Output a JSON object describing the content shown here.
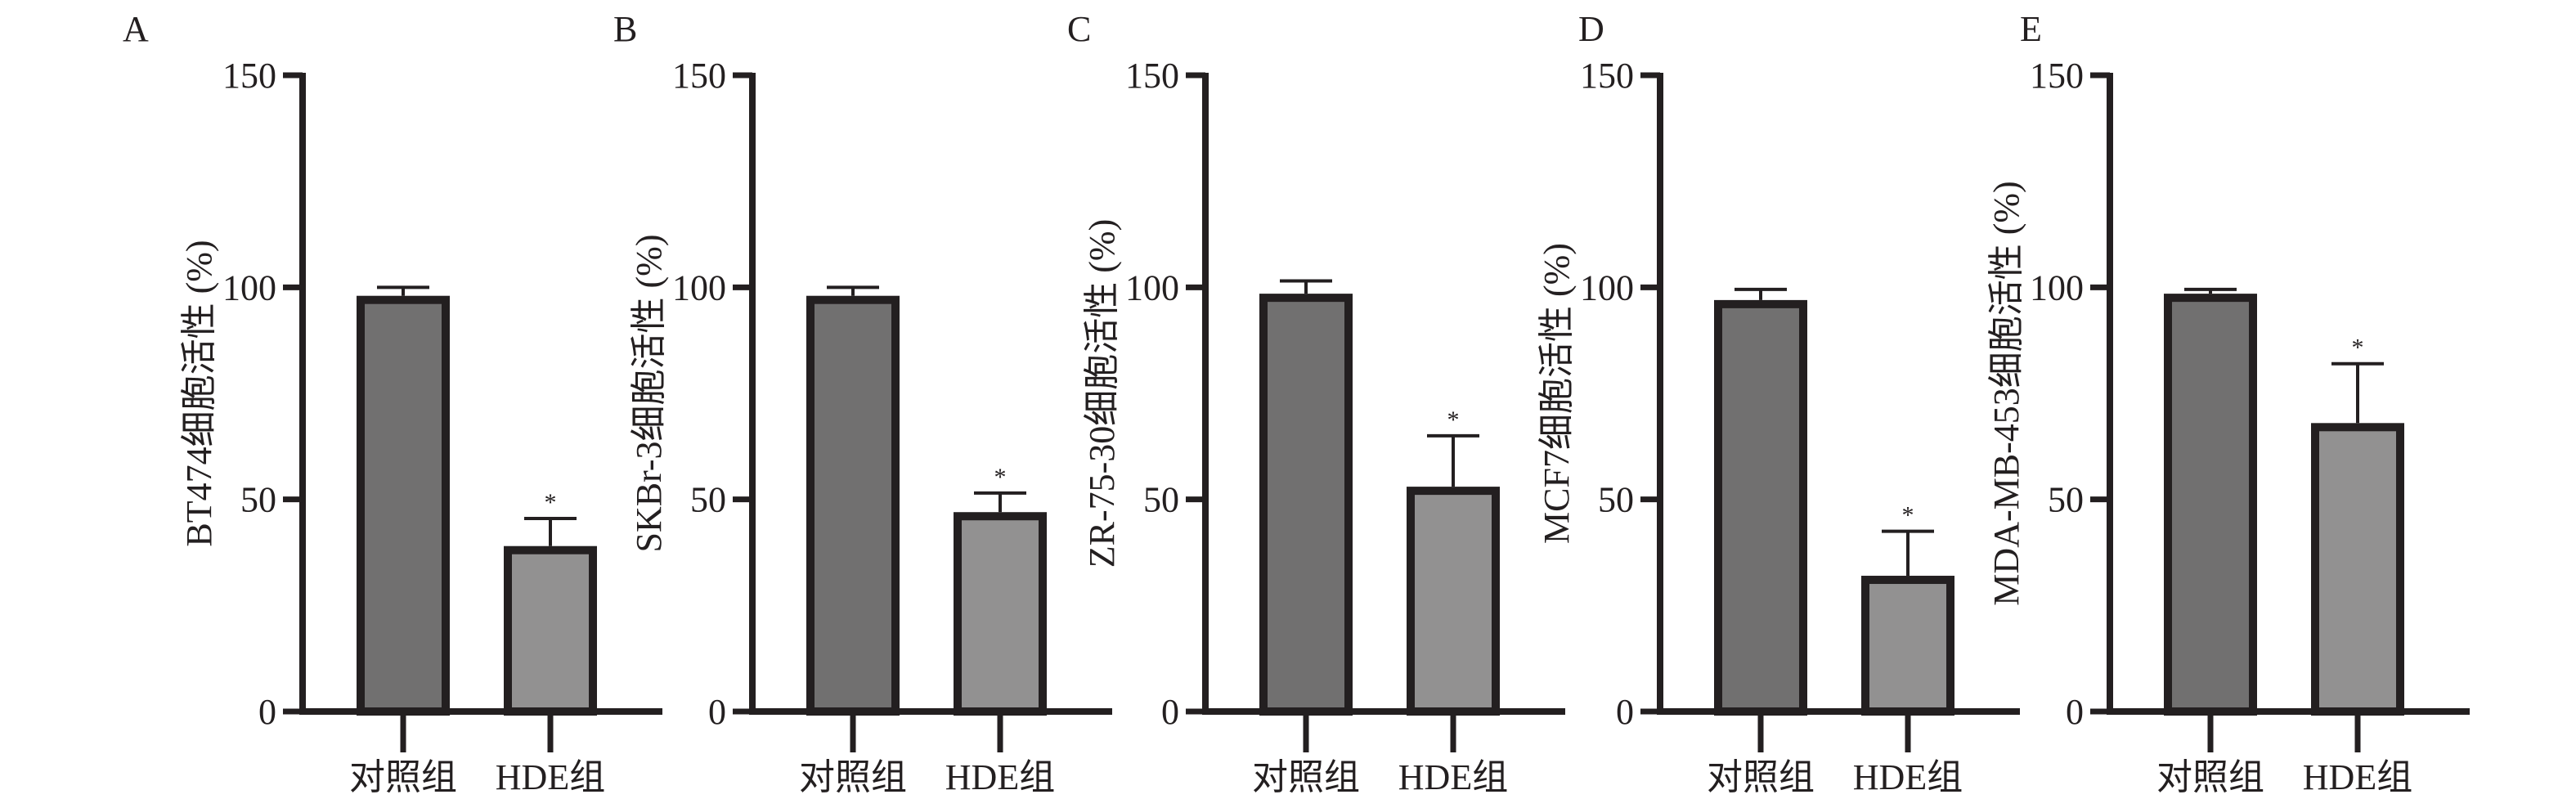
{
  "chart_data": [
    {
      "panel": "A",
      "type": "bar",
      "ylabel": "BT474细胞活性 (%)",
      "categories": [
        "对照组",
        "HDE组"
      ],
      "values": [
        98,
        39
      ],
      "error_upper": [
        100,
        45.5
      ],
      "annotations": [
        "",
        "*"
      ],
      "ylim": [
        0,
        150
      ],
      "yticks": [
        0,
        50,
        100,
        150
      ]
    },
    {
      "panel": "B",
      "type": "bar",
      "ylabel": "SKBr-3细胞活性 (%)",
      "categories": [
        "对照组",
        "HDE组"
      ],
      "values": [
        98,
        47
      ],
      "error_upper": [
        100,
        51.5
      ],
      "annotations": [
        "",
        "*"
      ],
      "ylim": [
        0,
        150
      ],
      "yticks": [
        0,
        50,
        100,
        150
      ]
    },
    {
      "panel": "C",
      "type": "bar",
      "ylabel": "ZR-75-30细胞活性 (%)",
      "categories": [
        "对照组",
        "HDE组"
      ],
      "values": [
        98.5,
        53
      ],
      "error_upper": [
        101.5,
        65
      ],
      "annotations": [
        "",
        "*"
      ],
      "ylim": [
        0,
        150
      ],
      "yticks": [
        0,
        50,
        100,
        150
      ]
    },
    {
      "panel": "D",
      "type": "bar",
      "ylabel": "MCF7细胞活性 (%)",
      "categories": [
        "对照组",
        "HDE组"
      ],
      "values": [
        97,
        32
      ],
      "error_upper": [
        99.5,
        42.5
      ],
      "annotations": [
        "",
        "*"
      ],
      "ylim": [
        0,
        150
      ],
      "yticks": [
        0,
        50,
        100,
        150
      ]
    },
    {
      "panel": "E",
      "type": "bar",
      "ylabel": "MDA-MB-453细胞活性 (%)",
      "categories": [
        "对照组",
        "HDE组"
      ],
      "values": [
        98.5,
        68
      ],
      "error_upper": [
        99.5,
        82
      ],
      "annotations": [
        "",
        "*"
      ],
      "ylim": [
        0,
        150
      ],
      "yticks": [
        0,
        50,
        100,
        150
      ]
    }
  ],
  "colors": {
    "control_bar": "#717070",
    "hde_bar": "#929191",
    "outline": "#231f20"
  }
}
